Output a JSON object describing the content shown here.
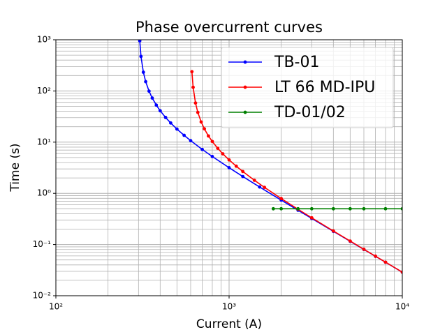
{
  "chart_data": {
    "type": "line",
    "title": "Phase overcurrent curves",
    "x_label": "Current (A)",
    "y_label": "Time (s)",
    "xscale": "log",
    "yscale": "log",
    "grid": true,
    "legend": "upper right",
    "xlim": [
      100,
      10000
    ],
    "ylim": [
      0.01,
      1000
    ],
    "xticks": [
      {
        "value": 100,
        "label": "10²"
      },
      {
        "value": 1000,
        "label": "10³"
      },
      {
        "value": 10000,
        "label": "10⁴"
      }
    ],
    "yticks": [
      {
        "value": 0.01,
        "label": "10⁻²"
      },
      {
        "value": 0.1,
        "label": "10⁻¹"
      },
      {
        "value": 1,
        "label": "10⁰"
      },
      {
        "value": 10,
        "label": "10¹"
      },
      {
        "value": 100,
        "label": "10²"
      },
      {
        "value": 1000,
        "label": "10³"
      }
    ],
    "xminorticks": [
      200,
      300,
      400,
      500,
      600,
      700,
      800,
      900,
      2000,
      3000,
      4000,
      5000,
      6000,
      7000,
      8000,
      9000
    ],
    "yminorticks": [
      0.02,
      0.03,
      0.04,
      0.05,
      0.06,
      0.07,
      0.08,
      0.09,
      0.2,
      0.3,
      0.4,
      0.5,
      0.6,
      0.7,
      0.8,
      0.9,
      2,
      3,
      4,
      5,
      6,
      7,
      8,
      9,
      20,
      30,
      40,
      50,
      60,
      70,
      80,
      90,
      200,
      300,
      400,
      500,
      600,
      700,
      800,
      900
    ],
    "series": [
      {
        "name": "TB-01",
        "color": "#0000ff",
        "x": [
          305,
          310,
          320,
          330,
          345,
          360,
          380,
          400,
          430,
          460,
          500,
          550,
          600,
          700,
          800,
          1000,
          1200,
          1500,
          2000,
          2500,
          3000,
          4000,
          5000,
          6000,
          7000,
          8000,
          10000
        ],
        "values": [
          952,
          472,
          232,
          152,
          99.2,
          72.7,
          52.9,
          41.1,
          30.3,
          23.7,
          18.0,
          13.6,
          10.7,
          7.2,
          5.24,
          3.17,
          2.13,
          1.33,
          0.736,
          0.468,
          0.323,
          0.181,
          0.1156,
          0.0802,
          0.0589,
          0.0451,
          0.0288
        ]
      },
      {
        "name": "LT 66 MD-IPU",
        "color": "#ff0000",
        "x": [
          610,
          620,
          640,
          660,
          690,
          720,
          760,
          800,
          860,
          920,
          1000,
          1100,
          1200,
          1400,
          1600,
          2000,
          2500,
          3000,
          4000,
          5000,
          6000,
          7000,
          8000,
          10000
        ],
        "values": [
          238,
          118,
          58.1,
          38.1,
          24.8,
          18.2,
          13.2,
          10.3,
          7.59,
          5.92,
          4.5,
          3.39,
          2.67,
          1.8,
          1.31,
          0.791,
          0.489,
          0.333,
          0.184,
          0.117,
          0.0808,
          0.0592,
          0.0453,
          0.0289
        ]
      },
      {
        "name": "TD-01/02",
        "color": "#008000",
        "x": [
          1800,
          2000,
          2500,
          3000,
          4000,
          5000,
          6000,
          8000,
          10000
        ],
        "values": [
          0.5,
          0.5,
          0.5,
          0.5,
          0.5,
          0.5,
          0.5,
          0.5,
          0.5
        ]
      }
    ]
  }
}
